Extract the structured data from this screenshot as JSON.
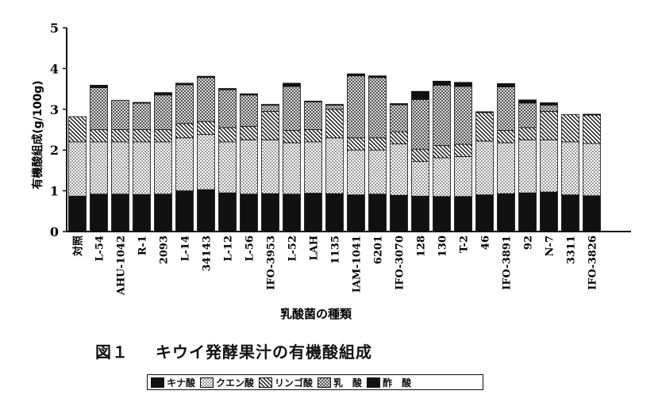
{
  "chart_data": {
    "type": "bar",
    "stacked": true,
    "title": "キウイ発酵果汁の有機酸組成",
    "figure_label": "図１",
    "xlabel": "乳酸菌の種類",
    "ylabel": "有機酸組成(g/100g)",
    "ylim": [
      0,
      5
    ],
    "yticks": [
      "0",
      "1",
      "2",
      "3",
      "4",
      "5"
    ],
    "grid": false,
    "legend_position": "bottom",
    "categories": [
      "対照",
      "L-54",
      "AHU-1042",
      "R-1",
      "2093",
      "L-14",
      "34143",
      "L-12",
      "L-56",
      "IFO-3953",
      "L-52",
      "LAH",
      "1135",
      "IAM-1041",
      "6201",
      "IFO-3070",
      "128",
      "130",
      "T-2",
      "46",
      "IFO-3891",
      "92",
      "N-7",
      "3311",
      "IFO-3826"
    ],
    "series": [
      {
        "name": "キナ酸",
        "pattern": "solid",
        "values": [
          0.87,
          0.92,
          0.92,
          0.91,
          0.92,
          1.0,
          1.03,
          0.95,
          0.92,
          0.93,
          0.92,
          0.94,
          0.93,
          0.9,
          0.92,
          0.89,
          0.87,
          0.86,
          0.86,
          0.9,
          0.93,
          0.95,
          0.97,
          0.9,
          0.88
        ]
      },
      {
        "name": "クエン酸",
        "pattern": "dots",
        "values": [
          1.33,
          1.28,
          1.28,
          1.29,
          1.28,
          1.3,
          1.35,
          1.25,
          1.33,
          1.32,
          1.26,
          1.26,
          1.37,
          1.1,
          1.08,
          1.26,
          0.85,
          0.95,
          0.98,
          1.32,
          1.25,
          1.3,
          1.28,
          1.3,
          1.28
        ]
      },
      {
        "name": "リンゴ酸",
        "pattern": "hatch",
        "values": [
          0.62,
          0.3,
          0.3,
          0.3,
          0.3,
          0.35,
          0.32,
          0.35,
          0.33,
          0.7,
          0.3,
          0.3,
          0.7,
          0.3,
          0.3,
          0.3,
          0.3,
          0.3,
          0.3,
          0.7,
          0.3,
          0.3,
          0.7,
          0.67,
          0.7
        ]
      },
      {
        "name": "乳　酸",
        "pattern": "check",
        "values": [
          0,
          1.03,
          0.72,
          0.65,
          0.85,
          0.95,
          1.08,
          0.93,
          0.77,
          0.15,
          1.08,
          0.68,
          0.1,
          1.52,
          1.48,
          0.66,
          1.22,
          1.48,
          1.42,
          0,
          1.07,
          0.6,
          0.15,
          0,
          0
        ]
      },
      {
        "name": "酢　酸",
        "pattern": "solid",
        "values": [
          0,
          0.06,
          0,
          0.02,
          0.06,
          0.04,
          0.03,
          0.03,
          0.03,
          0.02,
          0.08,
          0.02,
          0.02,
          0.05,
          0.04,
          0.03,
          0.2,
          0.1,
          0.1,
          0.02,
          0.08,
          0.08,
          0.06,
          0.0,
          0.02
        ]
      }
    ]
  }
}
